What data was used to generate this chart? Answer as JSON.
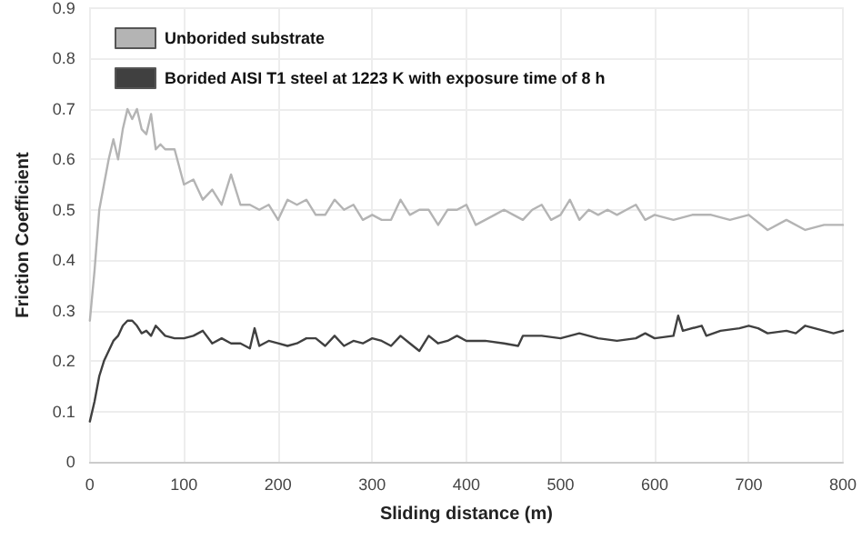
{
  "chart_data": {
    "type": "line",
    "xlabel": "Sliding distance (m)",
    "ylabel": "Friction Coefficient",
    "xlim": [
      0,
      800
    ],
    "xticks": [
      0,
      100,
      200,
      300,
      400,
      500,
      600,
      700,
      800
    ],
    "ylim": [
      0,
      0.9
    ],
    "yticks": [
      0,
      0.1,
      0.2,
      0.3,
      0.4,
      0.5,
      0.6,
      0.7,
      0.8,
      0.9
    ],
    "grid": true,
    "legend": "top left",
    "marker": "none",
    "line_style": "solid",
    "series": [
      {
        "name": "Unborided substrate",
        "color": "#b4b4b4",
        "x": [
          0,
          5,
          10,
          15,
          20,
          25,
          30,
          35,
          40,
          45,
          50,
          55,
          60,
          65,
          70,
          75,
          80,
          90,
          100,
          110,
          120,
          130,
          140,
          150,
          160,
          170,
          180,
          190,
          200,
          210,
          220,
          230,
          240,
          250,
          260,
          270,
          280,
          290,
          300,
          310,
          320,
          330,
          340,
          350,
          360,
          370,
          380,
          390,
          400,
          410,
          420,
          430,
          440,
          450,
          460,
          470,
          480,
          490,
          500,
          510,
          520,
          530,
          540,
          550,
          560,
          570,
          580,
          590,
          600,
          620,
          640,
          660,
          680,
          700,
          720,
          740,
          760,
          780,
          800
        ],
        "values": [
          0.28,
          0.38,
          0.5,
          0.55,
          0.6,
          0.64,
          0.6,
          0.66,
          0.7,
          0.68,
          0.7,
          0.66,
          0.65,
          0.69,
          0.62,
          0.63,
          0.62,
          0.62,
          0.55,
          0.56,
          0.52,
          0.54,
          0.51,
          0.57,
          0.51,
          0.51,
          0.5,
          0.51,
          0.48,
          0.52,
          0.51,
          0.52,
          0.49,
          0.49,
          0.52,
          0.5,
          0.51,
          0.48,
          0.49,
          0.48,
          0.48,
          0.52,
          0.49,
          0.5,
          0.5,
          0.47,
          0.5,
          0.5,
          0.51,
          0.47,
          0.48,
          0.49,
          0.5,
          0.49,
          0.48,
          0.5,
          0.51,
          0.48,
          0.49,
          0.52,
          0.48,
          0.5,
          0.49,
          0.5,
          0.49,
          0.5,
          0.51,
          0.48,
          0.49,
          0.48,
          0.49,
          0.49,
          0.48,
          0.49,
          0.46,
          0.48,
          0.46,
          0.47,
          0.47
        ]
      },
      {
        "name": "Borided AISI T1 steel at 1223 K with exposure time of 8 h",
        "color": "#404040",
        "x": [
          0,
          5,
          10,
          15,
          20,
          25,
          30,
          35,
          40,
          45,
          50,
          55,
          60,
          65,
          70,
          80,
          90,
          100,
          110,
          120,
          130,
          140,
          150,
          160,
          170,
          175,
          180,
          190,
          200,
          210,
          220,
          230,
          240,
          250,
          260,
          270,
          280,
          290,
          300,
          310,
          320,
          330,
          340,
          350,
          360,
          370,
          380,
          390,
          400,
          420,
          440,
          455,
          460,
          480,
          500,
          520,
          540,
          560,
          580,
          590,
          600,
          620,
          625,
          630,
          650,
          655,
          670,
          690,
          700,
          710,
          720,
          740,
          750,
          760,
          780,
          790,
          800
        ],
        "values": [
          0.08,
          0.12,
          0.17,
          0.2,
          0.22,
          0.24,
          0.25,
          0.27,
          0.28,
          0.28,
          0.27,
          0.255,
          0.26,
          0.25,
          0.27,
          0.25,
          0.245,
          0.245,
          0.25,
          0.26,
          0.235,
          0.245,
          0.235,
          0.235,
          0.225,
          0.265,
          0.23,
          0.24,
          0.235,
          0.23,
          0.235,
          0.245,
          0.245,
          0.23,
          0.25,
          0.23,
          0.24,
          0.235,
          0.245,
          0.24,
          0.23,
          0.25,
          0.235,
          0.22,
          0.25,
          0.235,
          0.24,
          0.25,
          0.24,
          0.24,
          0.235,
          0.23,
          0.25,
          0.25,
          0.245,
          0.255,
          0.245,
          0.24,
          0.245,
          0.255,
          0.245,
          0.25,
          0.29,
          0.26,
          0.27,
          0.25,
          0.26,
          0.265,
          0.27,
          0.265,
          0.255,
          0.26,
          0.255,
          0.27,
          0.26,
          0.255,
          0.26
        ]
      }
    ]
  }
}
